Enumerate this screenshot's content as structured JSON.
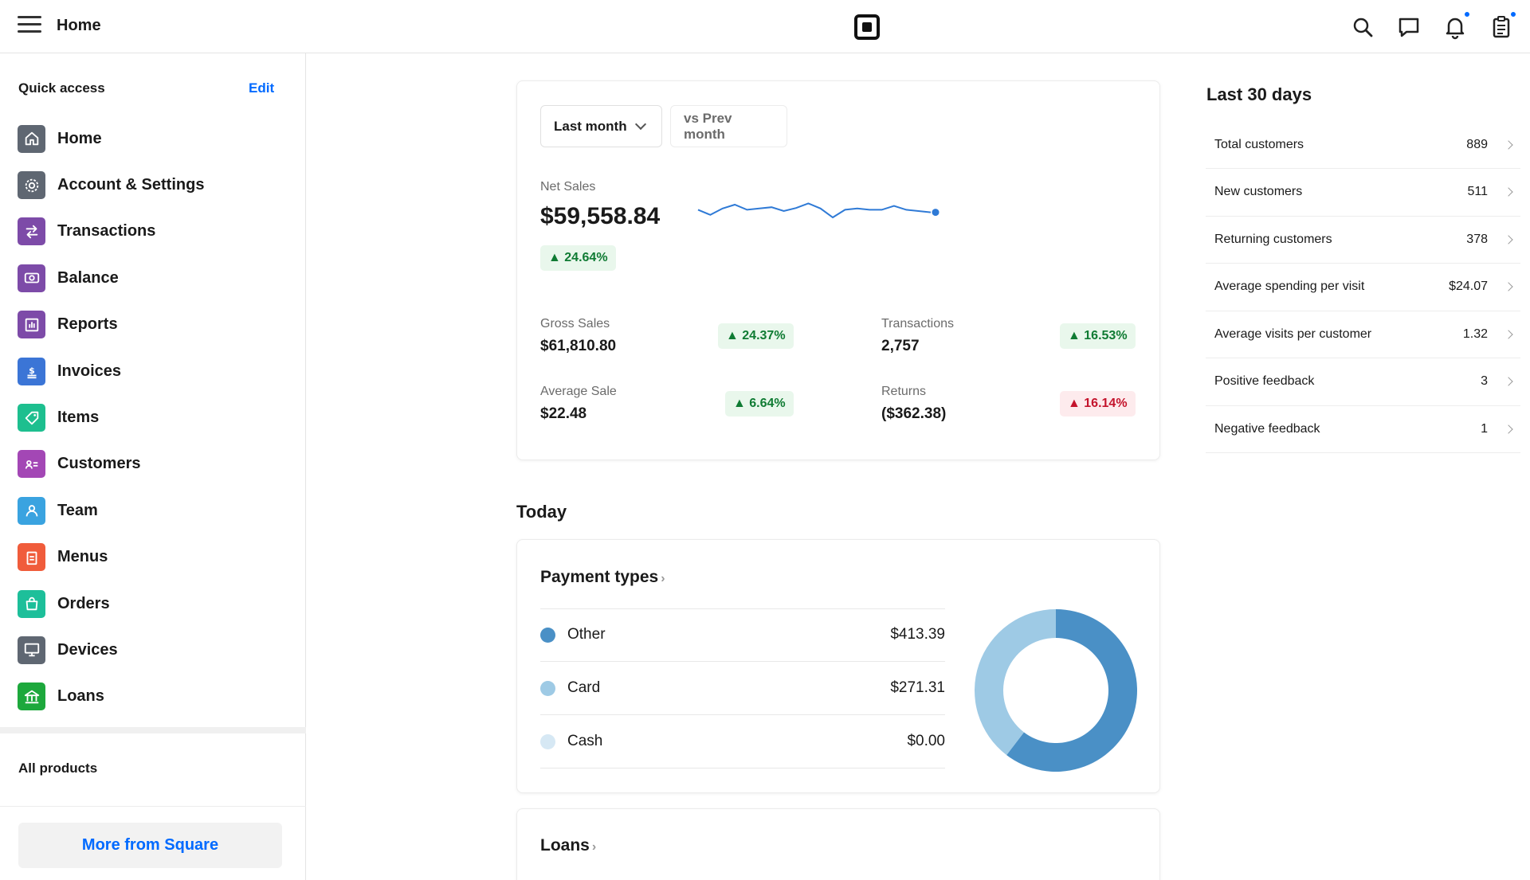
{
  "topbar": {
    "title": "Home",
    "icons": [
      "menu-icon",
      "square-logo",
      "search-icon",
      "chat-icon",
      "bell-icon",
      "clipboard-icon"
    ]
  },
  "sidebar": {
    "quick_access_title": "Quick access",
    "edit_label": "Edit",
    "items": [
      {
        "label": "Home",
        "icon": "home-icon",
        "color": "#5f6772"
      },
      {
        "label": "Account & Settings",
        "icon": "gear-icon",
        "color": "#5f6772"
      },
      {
        "label": "Transactions",
        "icon": "transfer-arrows-icon",
        "color": "#7d4ba8"
      },
      {
        "label": "Balance",
        "icon": "money-icon",
        "color": "#7d4ba8"
      },
      {
        "label": "Reports",
        "icon": "bar-chart-icon",
        "color": "#7d4ba8"
      },
      {
        "label": "Invoices",
        "icon": "invoice-icon",
        "color": "#3b75d6"
      },
      {
        "label": "Items",
        "icon": "tag-icon",
        "color": "#1dbf8f"
      },
      {
        "label": "Customers",
        "icon": "contact-card-icon",
        "color": "#a347b5"
      },
      {
        "label": "Team",
        "icon": "person-icon",
        "color": "#3aa3e0"
      },
      {
        "label": "Menus",
        "icon": "menu-clipboard-icon",
        "color": "#f05c3b"
      },
      {
        "label": "Orders",
        "icon": "shopping-bag-icon",
        "color": "#1dbf9a"
      },
      {
        "label": "Devices",
        "icon": "monitor-icon",
        "color": "#5f6772"
      },
      {
        "label": "Loans",
        "icon": "bank-icon",
        "color": "#1da83c"
      }
    ],
    "all_products_label": "All products",
    "more_button_label": "More from Square"
  },
  "summary": {
    "period_dropdown": "Last month",
    "compare_dropdown": "vs Prev month",
    "net_sales_label": "Net Sales",
    "net_sales_value": "$59,558.84",
    "net_sales_change": "▲ 24.64%",
    "metrics": [
      {
        "label": "Gross Sales",
        "value": "$61,810.80",
        "change": "▲ 24.37%",
        "trend": "up"
      },
      {
        "label": "Transactions",
        "value": "2,757",
        "change": "▲ 16.53%",
        "trend": "up"
      },
      {
        "label": "Average Sale",
        "value": "$22.48",
        "change": "▲ 6.64%",
        "trend": "up"
      },
      {
        "label": "Returns",
        "value": "($362.38)",
        "change": "▲ 16.14%",
        "trend": "down"
      }
    ],
    "sparkline": [
      0.55,
      0.35,
      0.6,
      0.75,
      0.55,
      0.6,
      0.65,
      0.5,
      0.62,
      0.8,
      0.6,
      0.25,
      0.55,
      0.6,
      0.55,
      0.55,
      0.7,
      0.55,
      0.5,
      0.45
    ]
  },
  "today": {
    "title": "Today",
    "payment_types_title": "Payment types",
    "payments": [
      {
        "name": "Other",
        "value": "$413.39",
        "color": "#4a90c6",
        "amount": 413.39
      },
      {
        "name": "Card",
        "value": "$271.31",
        "color": "#9ecae5",
        "amount": 271.31
      },
      {
        "name": "Cash",
        "value": "$0.00",
        "color": "#d6e8f4",
        "amount": 0
      }
    ],
    "loans_title": "Loans"
  },
  "last30": {
    "title": "Last 30 days",
    "rows": [
      {
        "label": "Total customers",
        "value": "889"
      },
      {
        "label": "New customers",
        "value": "511"
      },
      {
        "label": "Returning customers",
        "value": "378"
      },
      {
        "label": "Average spending per visit",
        "value": "$24.07"
      },
      {
        "label": "Average visits per customer",
        "value": "1.32"
      },
      {
        "label": "Positive feedback",
        "value": "3"
      },
      {
        "label": "Negative feedback",
        "value": "1"
      }
    ]
  }
}
